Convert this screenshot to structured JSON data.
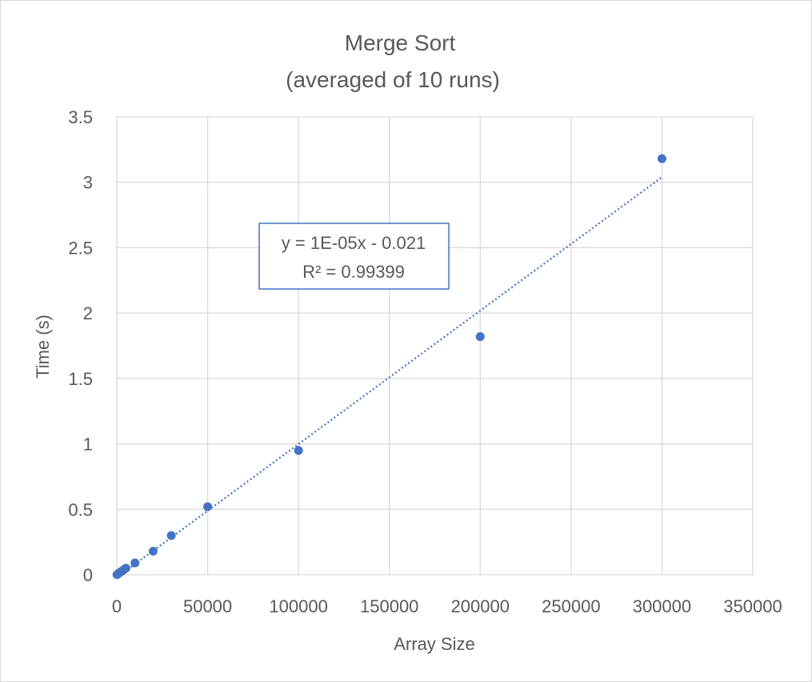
{
  "chart_data": {
    "type": "scatter",
    "title": "Merge Sort",
    "subtitle": "(averaged of 10 runs)",
    "xlabel": "Array Size",
    "ylabel": "Time (s)",
    "xlim": [
      0,
      350000
    ],
    "ylim": [
      0,
      3.5
    ],
    "x_ticks": [
      "0",
      "50000",
      "100000",
      "150000",
      "200000",
      "250000",
      "300000",
      "350000"
    ],
    "y_ticks": [
      "0",
      "0.5",
      "1",
      "1.5",
      "2",
      "2.5",
      "3",
      "3.5"
    ],
    "grid": true,
    "legend": "none",
    "series": [
      {
        "color": "#4472c4",
        "x": [
          100,
          500,
          1000,
          2000,
          3000,
          4000,
          5000,
          10000,
          20000,
          30000,
          50000,
          100000,
          200000,
          300000
        ],
        "y": [
          0.001,
          0.005,
          0.01,
          0.02,
          0.03,
          0.04,
          0.05,
          0.09,
          0.18,
          0.3,
          0.52,
          0.95,
          1.82,
          3.18
        ]
      }
    ],
    "trendline": {
      "type": "linear",
      "color": "#4472c4",
      "slope": 1.02e-05,
      "intercept": -0.021,
      "x_range": [
        0,
        300000
      ],
      "equation": "y = 1E-05x - 0.021",
      "r_squared": "R² = 0.99399"
    }
  }
}
